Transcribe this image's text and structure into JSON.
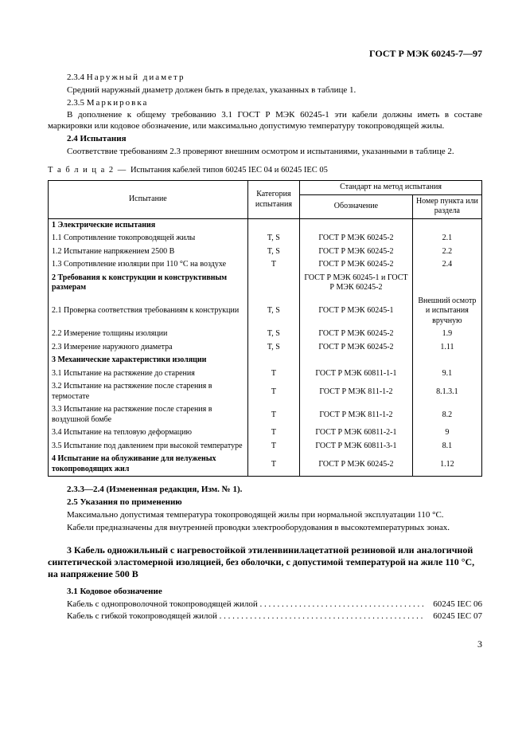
{
  "doc_code": "ГОСТ Р МЭК 60245-7—97",
  "p234_prefix": "2.3.4 ",
  "p234_title": "Наружный диаметр",
  "p234_text": "Средний наружный диаметр должен быть в пределах, указанных в таблице 1.",
  "p235_prefix": "2.3.5 ",
  "p235_title": "Маркировка",
  "p235_text": "В дополнение к общему требованию 3.1 ГОСТ Р МЭК 60245-1 эти кабели должны иметь в составе маркировки или кодовое обозначение, или максимально допустимую температуру токопроводящей жилы.",
  "p24_h": "2.4  Испытания",
  "p24_text": "Соответствие требованиям 2.3 проверяют внешним осмотром и испытаниями, указанными в таблице 2.",
  "table_caption_prefix": "Т а б л и ц а 2 — ",
  "table_caption": "Испытания кабелей типов 60245 IEC 04 и 60245 IEC 05",
  "th_test": "Испытание",
  "th_category": "Категория испытания",
  "th_standard": "Стандарт на метод испытания",
  "th_desig": "Обозначение",
  "th_clause": "Номер пункта или раздела",
  "rows": [
    {
      "t": "1  Электрические испытания",
      "c": "",
      "d": "",
      "cl": "",
      "bold": true
    },
    {
      "t": "1.1  Сопротивление токопроводящей жилы",
      "c": "T, S",
      "d": "ГОСТ Р МЭК 60245-2",
      "cl": "2.1"
    },
    {
      "t": "1.2  Испытание напряжением 2500 В",
      "c": "T, S",
      "d": "ГОСТ Р МЭК 60245-2",
      "cl": "2.2"
    },
    {
      "t": "1.3  Сопротивление изоляции при 110 °C на воздухе",
      "c": "T",
      "d": "ГОСТ Р МЭК 60245-2",
      "cl": "2.4"
    },
    {
      "t": "2  Требования к конструкции и конструктивным размерам",
      "c": "",
      "d": "ГОСТ Р МЭК 60245-1 и ГОСТ Р МЭК 60245-2",
      "cl": "",
      "bold": true
    },
    {
      "t": "2.1  Проверка  соответствия  требованиям  к  конструкции",
      "c": "T, S",
      "d": "ГОСТ Р МЭК 60245-1",
      "cl": "Внешний осмотр и испытания вручную"
    },
    {
      "t": "2.2  Измерение толщины изоляции",
      "c": "T, S",
      "d": "ГОСТ Р МЭК 60245-2",
      "cl": "1.9"
    },
    {
      "t": "2.3  Измерение наружного диаметра",
      "c": "T, S",
      "d": "ГОСТ Р МЭК 60245-2",
      "cl": "1.11"
    },
    {
      "t": "3  Механические характеристики изоляции",
      "c": "",
      "d": "",
      "cl": "",
      "bold": true
    },
    {
      "t": "3.1  Испытание на растяжение до старения",
      "c": "T",
      "d": "ГОСТ Р МЭК 60811-1-1",
      "cl": "9.1"
    },
    {
      "t": "3.2  Испытание  на  растяжение  после  старения  в термостате",
      "c": "T",
      "d": "ГОСТ Р МЭК 811-1-2",
      "cl": "8.1.3.1"
    },
    {
      "t": "3.3  Испытание  на  растяжение  после  старения  в воздушной бомбе",
      "c": "T",
      "d": "ГОСТ Р МЭК 811-1-2",
      "cl": "8.2"
    },
    {
      "t": "3.4  Испытание на тепловую деформацию",
      "c": "T",
      "d": "ГОСТ Р МЭК 60811-2-1",
      "cl": "9"
    },
    {
      "t": "3.5  Испытание   под   давлением   при   высокой температуре",
      "c": "T",
      "d": "ГОСТ Р МЭК 60811-3-1",
      "cl": "8.1"
    },
    {
      "t": "4  Испытание   на   облуживание   для   нелуженых токопроводящих жил",
      "c": "T",
      "d": "ГОСТ Р МЭК 60245-2",
      "cl": "1.12",
      "bold": true
    }
  ],
  "amend": "2.3.3—2.4  (Измененная редакция, Изм. № 1).",
  "p25_h": "2.5  Указания по применению",
  "p25_text1": "Максимально допустимая температура токопроводящей жилы при нормальной эксплуатации 110 °C.",
  "p25_text2": "Кабели предназначены для внутренней проводки электрооборудования в высокотемпературных зонах.",
  "sec3_h": "3  Кабель одножильный с нагревостойкой этиленвинилацетатной резиновой или аналогичной синтетической эластомерной изоляцией, без оболочки, с допустимой температурой на жиле 110 °C, на напряжение 500 В",
  "p31_h": "3.1  Кодовое обозначение",
  "code_rows": [
    {
      "label": "Кабель с однопроволочной токопроводящей жилой",
      "code": "60245 IEC 06"
    },
    {
      "label": "Кабель с гибкой токопроводящей жилой",
      "code": "60245 IEC 07"
    }
  ],
  "page_num": "3"
}
